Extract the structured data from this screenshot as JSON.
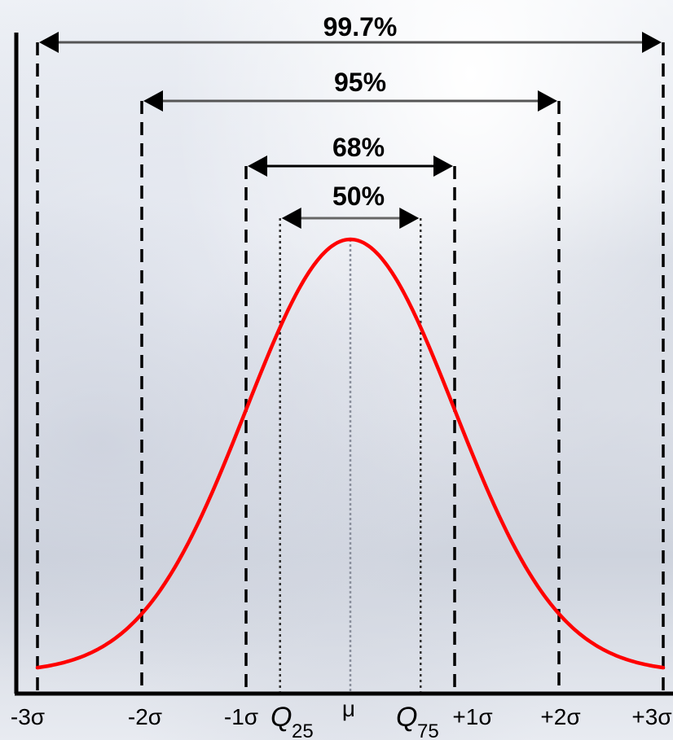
{
  "intervals": [
    {
      "label": "99.7%",
      "from": -3,
      "to": 3
    },
    {
      "label": "95%",
      "from": -2,
      "to": 2
    },
    {
      "label": "68%",
      "from": -1,
      "to": 1
    },
    {
      "label": "50%",
      "from": -0.674,
      "to": 0.674
    }
  ],
  "axis_ticks": {
    "minus3": "-3σ",
    "minus2": "-2σ",
    "minus1": "-1σ",
    "mu": "μ",
    "plus1": "+1σ",
    "plus2": "+2σ",
    "plus3": "+3σ"
  },
  "quartiles": {
    "q25": {
      "letter": "Q",
      "sub": "25"
    },
    "q75": {
      "letter": "Q",
      "sub": "75"
    }
  },
  "colors": {
    "curve": "#ff0000",
    "arrow_outer": "#555555",
    "arrow_inner": "#000000",
    "dash": "#000000"
  }
}
